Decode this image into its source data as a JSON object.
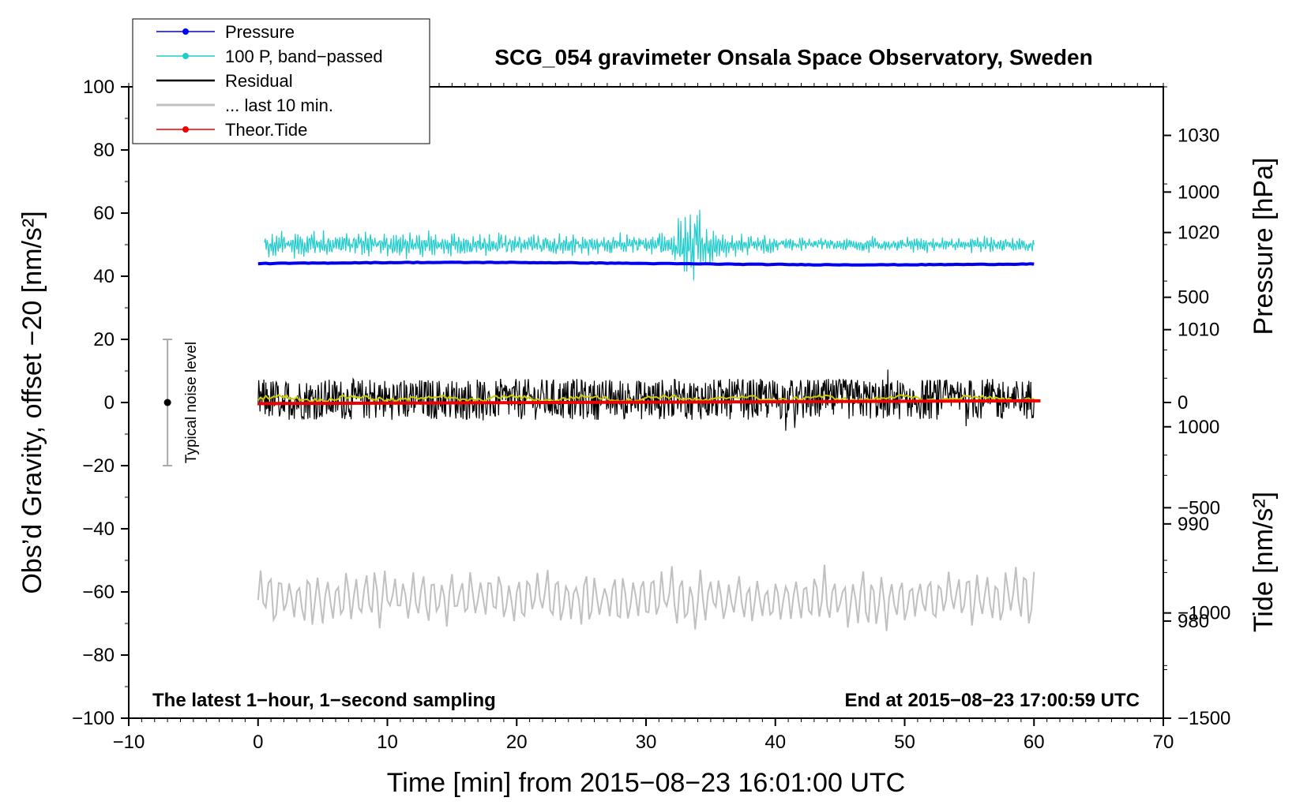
{
  "chart_data": {
    "type": "line",
    "title": "SCG_054 gravimeter Onsala Space Observatory, Sweden",
    "xlabel": "Time [min] from 2015−08−23 16:01:00 UTC",
    "ylabel_left": "Obs’d Gravity, offset −20 [nm/s²]",
    "ylabel_right_top": "Pressure [hPa]",
    "ylabel_right_bottom": "Tide [nm/s²]",
    "xlim": [
      -10,
      70
    ],
    "ylim": [
      -100,
      100
    ],
    "pressure_lim": [
      970,
      1035
    ],
    "tide_lim": [
      -1500,
      1500
    ],
    "x_ticks": [
      {
        "v": -10,
        "label": "−10"
      },
      {
        "v": 0,
        "label": "0"
      },
      {
        "v": 10,
        "label": "10"
      },
      {
        "v": 20,
        "label": "20"
      },
      {
        "v": 30,
        "label": "30"
      },
      {
        "v": 40,
        "label": "40"
      },
      {
        "v": 50,
        "label": "50"
      },
      {
        "v": 60,
        "label": "60"
      },
      {
        "v": 70,
        "label": "70"
      }
    ],
    "y_ticks": [
      {
        "v": 100,
        "label": "100"
      },
      {
        "v": 80,
        "label": "80"
      },
      {
        "v": 60,
        "label": "60"
      },
      {
        "v": 40,
        "label": "40"
      },
      {
        "v": 20,
        "label": "20"
      },
      {
        "v": 0,
        "label": "0"
      },
      {
        "v": -20,
        "label": "−20"
      },
      {
        "v": -40,
        "label": "−40"
      },
      {
        "v": -60,
        "label": "−60"
      },
      {
        "v": -80,
        "label": "−80"
      },
      {
        "v": -100,
        "label": "−100"
      }
    ],
    "pressure_ticks": [
      {
        "v": 1030,
        "label": "1030"
      },
      {
        "v": 1020,
        "label": "1020"
      },
      {
        "v": 1010,
        "label": "1010"
      },
      {
        "v": 1000,
        "label": "1000"
      },
      {
        "v": 990,
        "label": "990"
      },
      {
        "v": 980,
        "label": "980"
      }
    ],
    "tide_ticks": [
      {
        "v": 1000,
        "label": "1000"
      },
      {
        "v": 500,
        "label": "500"
      },
      {
        "v": 0,
        "label": "0"
      },
      {
        "v": -500,
        "label": "−500"
      },
      {
        "v": -1000,
        "label": "−1000"
      },
      {
        "v": -1500,
        "label": "−1500"
      }
    ],
    "series": [
      {
        "name": "Pressure",
        "color": "#0000ee",
        "axis": "pressure",
        "x_range": [
          0,
          60
        ],
        "values_summary": "approx. constant 1016.8 hPa"
      },
      {
        "name": "100 P, band−passed",
        "color": "#22cccc",
        "axis": "gravity",
        "x_range": [
          0.5,
          60
        ],
        "values_summary": "centred near 50 nm/s², peak burst around 33–34 min"
      },
      {
        "name": "Residual",
        "color": "#000000",
        "axis": "gravity",
        "x_range": [
          0,
          60
        ],
        "values_summary": "noise around 0 nm/s², amplitude about ±8"
      },
      {
        "name": "... last 10 min.",
        "color": "#c0c0c0",
        "axis": "gravity",
        "x_range": [
          0,
          60
        ],
        "values_summary": "oscillation around −62 nm/s², amplitude about ±7"
      },
      {
        "name": "Theor.Tide",
        "color": "#ee0000",
        "axis": "tide",
        "x_range": [
          0,
          60.5
        ],
        "values": [
          [
            0,
            -5
          ],
          [
            60.5,
            8
          ]
        ]
      }
    ],
    "smoothed_residual_color": "#cccc00",
    "legend": {
      "placement": "top-left",
      "entries": [
        {
          "label": "Pressure",
          "color": "#0000ee",
          "marker": true
        },
        {
          "label": "100 P, band−passed",
          "color": "#22cccc",
          "marker": true
        },
        {
          "label": "Residual",
          "color": "#000000",
          "marker": false
        },
        {
          "label": "... last 10 min.",
          "color": "#c0c0c0",
          "marker": false
        },
        {
          "label": "Theor.Tide",
          "color": "#ee0000",
          "marker": true
        }
      ]
    },
    "noise_indicator": {
      "label": "Typical noise level",
      "x": -7,
      "center": 0,
      "range": [
        -20,
        20
      ]
    },
    "annotations": {
      "bottom_left": "The latest 1−hour, 1−second sampling",
      "bottom_right": "End at 2015−08−23 17:00:59 UTC"
    }
  }
}
